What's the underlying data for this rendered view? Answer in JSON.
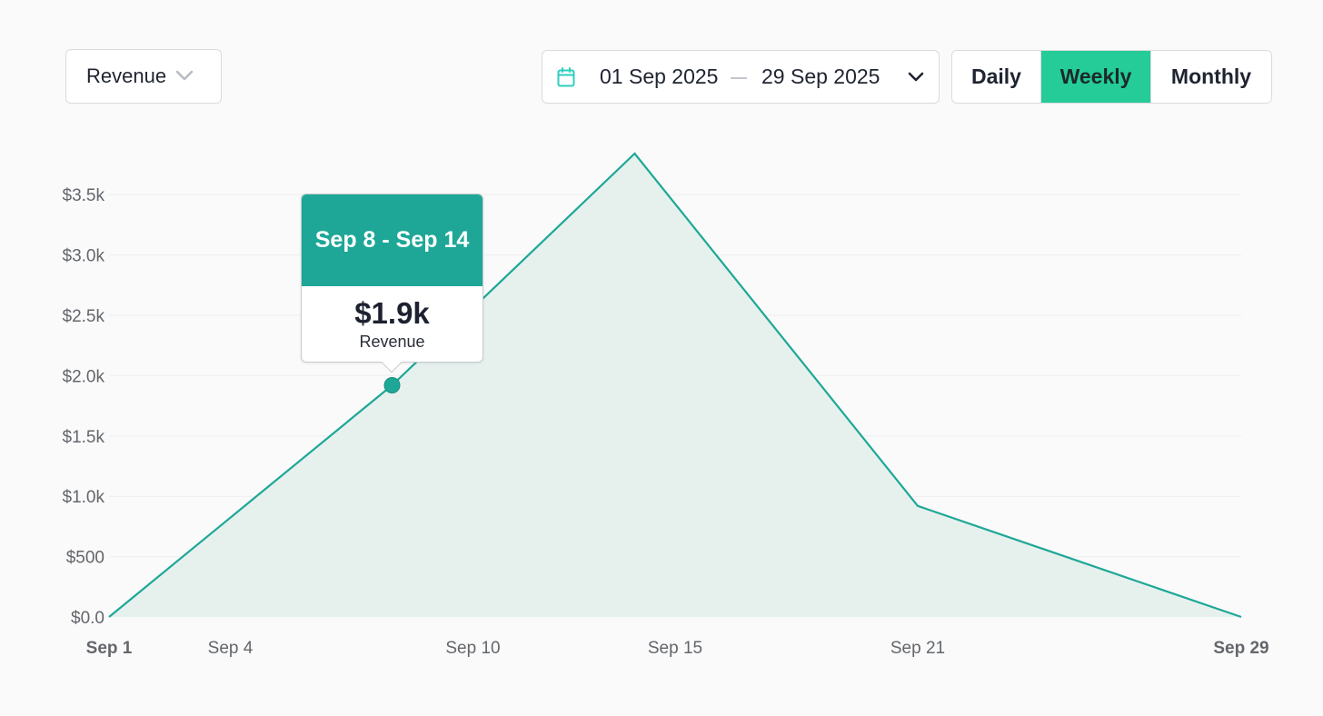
{
  "metric_selector": {
    "value": "Revenue",
    "icon": "chevron-down-icon"
  },
  "date_range": {
    "start": "01 Sep 2025",
    "end": "29 Sep 2025",
    "icon": "calendar-icon",
    "icon_color": "#2ecfbd"
  },
  "period_toggle": {
    "options": [
      "Daily",
      "Weekly",
      "Monthly"
    ],
    "selected": "Weekly",
    "active_color": "#25cc98"
  },
  "tooltip": {
    "title": "Sep 8 - Sep 14",
    "value": "$1.9k",
    "metric": "Revenue",
    "header_color": "#1ea797"
  },
  "chart_data": {
    "type": "area",
    "x": [
      "2025-09-01",
      "2025-09-08",
      "2025-09-14",
      "2025-09-21",
      "2025-09-29"
    ],
    "y": [
      0,
      1920,
      3840,
      920,
      0
    ],
    "highlight_index": 1,
    "ylim": [
      0,
      3840
    ],
    "y_ticks": [
      0,
      500,
      1000,
      1500,
      2000,
      2500,
      3000,
      3500
    ],
    "y_tick_labels": [
      "$0.0",
      "$500",
      "$1.0k",
      "$1.5k",
      "$2.0k",
      "$2.5k",
      "$3.0k",
      "$3.5k"
    ],
    "x_ticks": [
      "2025-09-01",
      "2025-09-04",
      "2025-09-10",
      "2025-09-15",
      "2025-09-21",
      "2025-09-29"
    ],
    "x_tick_labels": [
      "Sep 1",
      "Sep 4",
      "Sep 10",
      "Sep 15",
      "Sep 21",
      "Sep 29"
    ],
    "x_tick_bold": [
      true,
      false,
      false,
      false,
      false,
      true
    ],
    "grid": true,
    "line_color": "#1ea797",
    "fill_color": "#e6f1ee"
  }
}
